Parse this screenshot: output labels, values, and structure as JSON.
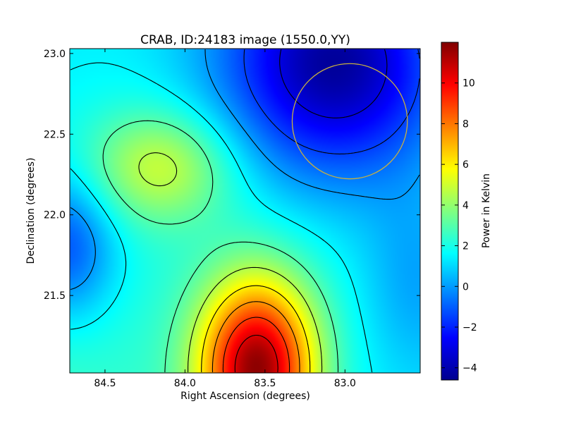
{
  "chart_data": {
    "type": "heatmap",
    "title": "CRAB, ID:24183 image (1550.0,YY)",
    "xlabel": "Right Ascension (degrees)",
    "ylabel": "Declination (degrees)",
    "colorbar_label": "Power in Kelvin",
    "xlim": [
      84.72,
      82.53
    ],
    "ylim": [
      21.02,
      23.03
    ],
    "xticks": [
      84.5,
      84.0,
      83.5,
      83.0
    ],
    "xtick_labels": [
      "84.5",
      "84.0",
      "83.5",
      "83.0"
    ],
    "yticks": [
      21.5,
      22.0,
      22.5,
      23.0
    ],
    "ytick_labels": [
      "21.5",
      "22.0",
      "22.5",
      "23.0"
    ],
    "colorbar_range": [
      -4.6,
      12.0
    ],
    "colorbar_ticks": [
      -4,
      -2,
      0,
      2,
      4,
      6,
      8,
      10
    ],
    "colorbar_tick_labels": [
      "−4",
      "−2",
      "0",
      "2",
      "4",
      "6",
      "8",
      "10"
    ],
    "colormap": "jet",
    "contour_levels": [
      -3,
      -1.5,
      0,
      1.5,
      3,
      4.5,
      6,
      7.5,
      9,
      10.5
    ],
    "field_description": "Peak of about 11.8 K near RA 83.55, Dec 21.05; ridge near RA 84.1, Dec 22.3 at about 5 K; minimum of about -4.3 K near RA 83.1, Dec 22.95; secondary low of about -1 K near RA 84.7, Dec 21.8",
    "field_features": [
      {
        "ra": 83.55,
        "dec": 21.05,
        "value": 11.8
      },
      {
        "ra": 84.1,
        "dec": 22.3,
        "value": 5.0
      },
      {
        "ra": 83.1,
        "dec": 22.95,
        "value": -4.3
      },
      {
        "ra": 84.7,
        "dec": 21.8,
        "value": -1.0
      }
    ],
    "annotation_circle": {
      "center_ra": 82.97,
      "center_dec": 22.58,
      "radius_deg": 0.36,
      "color": "#c8b040"
    },
    "grid": false
  }
}
